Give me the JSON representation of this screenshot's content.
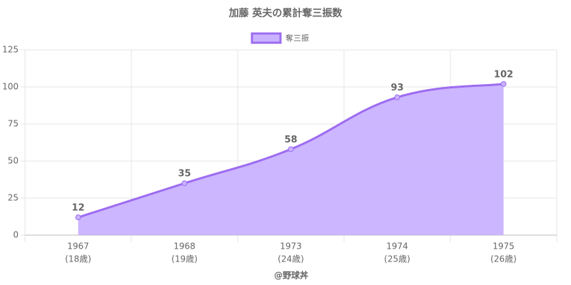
{
  "chart_data": {
    "type": "line",
    "title": "加藤 英夫の累計奪三振数",
    "x_label": "@野球丼",
    "categories": [
      [
        "1967",
        "(18歳)"
      ],
      [
        "1968",
        "(19歳)"
      ],
      [
        "1973",
        "(24歳)"
      ],
      [
        "1974",
        "(25歳)"
      ],
      [
        "1975",
        "(26歳)"
      ]
    ],
    "series": [
      {
        "name": "奪三振",
        "color": "#9d6cf0",
        "fill": "#c9b2ff",
        "values": [
          12,
          35,
          58,
          93,
          102
        ]
      }
    ],
    "ylim": [
      0,
      125
    ],
    "yticks": [
      0,
      25,
      50,
      75,
      100,
      125
    ],
    "grid": true,
    "legend": "top"
  }
}
